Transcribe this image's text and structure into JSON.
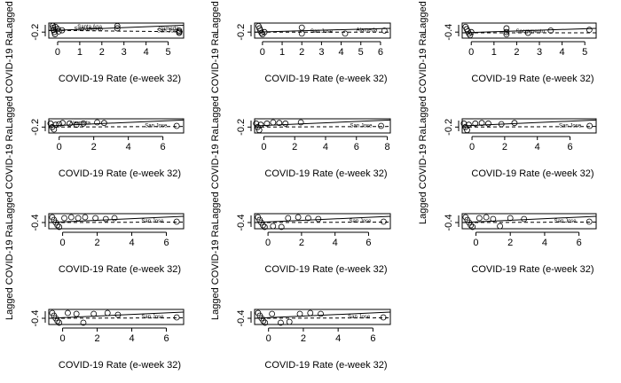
{
  "figure": {
    "xlabel_text": "COVID-19 Rate (e-week 32)",
    "ylabel_text": "Lagged COVID-19 Ra"
  },
  "chart_data": [
    {
      "type": "scatter",
      "panel": 1,
      "xlabel": "COVID-19 Rate (e-week 32)",
      "ylabel": "Lagged COVID-19 Ra",
      "xlim": [
        -0.4,
        5.7
      ],
      "ylim": [
        -0.24,
        -0.14
      ],
      "xticks": [
        0,
        1,
        2,
        3,
        4,
        5
      ],
      "yticks": [
        -0.2
      ],
      "fit_solid": {
        "x": [
          -0.4,
          5.7
        ],
        "y": [
          -0.19,
          -0.155
        ]
      },
      "fit_dashed": {
        "x": [
          -0.4,
          5.7
        ],
        "y": [
          -0.188,
          -0.198
        ]
      },
      "points": [
        {
          "x": -0.22,
          "y": -0.158
        },
        {
          "x": -0.2,
          "y": -0.172
        },
        {
          "x": -0.18,
          "y": -0.186
        },
        {
          "x": -0.15,
          "y": -0.2
        },
        {
          "x": -0.12,
          "y": -0.214
        },
        {
          "x": -0.1,
          "y": -0.165
        },
        {
          "x": 0.0,
          "y": -0.18
        },
        {
          "x": 0.05,
          "y": -0.195
        },
        {
          "x": 0.2,
          "y": -0.188
        },
        {
          "x": 2.7,
          "y": -0.16
        },
        {
          "x": 2.7,
          "y": -0.175
        },
        {
          "x": 5.5,
          "y": -0.19
        },
        {
          "x": 5.5,
          "y": -0.198
        },
        {
          "x": 5.5,
          "y": -0.205
        }
      ],
      "labeled_points": [
        {
          "label": "Santa Ana",
          "x": 1.45,
          "y": -0.16
        },
        {
          "label": "Sacramento",
          "x": 1.4,
          "y": -0.19
        },
        {
          "label": "Alameda",
          "x": 5.0,
          "y": -0.188
        },
        {
          "label": "San Jose",
          "x": 5.0,
          "y": -0.202
        }
      ]
    },
    {
      "type": "scatter",
      "panel": 2,
      "xlabel": "COVID-19 Rate (e-week 32)",
      "ylabel": "Lagged COVID-19 Ra",
      "xlim": [
        -0.4,
        6.5
      ],
      "ylim": [
        -0.24,
        -0.14
      ],
      "xticks": [
        0,
        1,
        2,
        3,
        4,
        5,
        6
      ],
      "yticks": [
        -0.2
      ],
      "fit_solid": {
        "x": [
          -0.4,
          6.5
        ],
        "y": [
          -0.2,
          -0.175
        ]
      },
      "fit_dashed": {
        "x": [
          -0.4,
          6.5
        ],
        "y": [
          -0.2,
          -0.2
        ]
      },
      "points": [
        {
          "x": -0.2,
          "y": -0.16
        },
        {
          "x": -0.15,
          "y": -0.175
        },
        {
          "x": -0.1,
          "y": -0.19
        },
        {
          "x": -0.05,
          "y": -0.205
        },
        {
          "x": 0.0,
          "y": -0.215
        },
        {
          "x": 0.1,
          "y": -0.2
        },
        {
          "x": 2.0,
          "y": -0.17
        },
        {
          "x": 2.0,
          "y": -0.21
        },
        {
          "x": 4.2,
          "y": -0.21
        },
        {
          "x": 6.2,
          "y": -0.19
        }
      ],
      "labeled_points": [
        {
          "label": "San Jose",
          "x": 3.0,
          "y": -0.205
        },
        {
          "label": "Alameda",
          "x": 5.3,
          "y": -0.195
        }
      ]
    },
    {
      "type": "scatter",
      "panel": 3,
      "xlabel": "COVID-19 Rate (e-week 32)",
      "ylabel": "Lagged COVID-19 Ra",
      "xlim": [
        -0.4,
        5.5
      ],
      "ylim": [
        -0.48,
        -0.28
      ],
      "xticks": [
        0,
        1,
        2,
        3,
        4,
        5
      ],
      "yticks": [
        -0.4
      ],
      "fit_solid": {
        "x": [
          -0.4,
          5.5
        ],
        "y": [
          -0.41,
          -0.35
        ]
      },
      "fit_dashed": {
        "x": [
          -0.4,
          5.5
        ],
        "y": [
          -0.41,
          -0.41
        ]
      },
      "points": [
        {
          "x": -0.25,
          "y": -0.33
        },
        {
          "x": -0.2,
          "y": -0.36
        },
        {
          "x": -0.15,
          "y": -0.39
        },
        {
          "x": -0.1,
          "y": -0.42
        },
        {
          "x": -0.05,
          "y": -0.44
        },
        {
          "x": 0.0,
          "y": -0.4
        },
        {
          "x": 1.55,
          "y": -0.35
        },
        {
          "x": 1.55,
          "y": -0.4
        },
        {
          "x": 1.55,
          "y": -0.43
        },
        {
          "x": 2.5,
          "y": -0.41
        },
        {
          "x": 3.5,
          "y": -0.38
        },
        {
          "x": 5.2,
          "y": -0.37
        }
      ],
      "labeled_points": [
        {
          "label": "Sacramento",
          "x": 2.6,
          "y": -0.41
        }
      ]
    },
    {
      "type": "scatter",
      "panel": 4,
      "xlabel": "COVID-19 Rate (e-week 32)",
      "ylabel": "Lagged COVID-19 Ra",
      "xlim": [
        -0.6,
        7.2
      ],
      "ylim": [
        -0.25,
        -0.13
      ],
      "xticks": [
        0,
        2,
        4,
        6
      ],
      "yticks": [
        -0.2
      ],
      "fit_solid": {
        "x": [
          -0.6,
          7.2
        ],
        "y": [
          -0.19,
          -0.14
        ]
      },
      "fit_dashed": {
        "x": [
          -0.6,
          7.2
        ],
        "y": [
          -0.2,
          -0.195
        ]
      },
      "points": [
        {
          "x": -0.5,
          "y": -0.17
        },
        {
          "x": -0.4,
          "y": -0.2
        },
        {
          "x": -0.3,
          "y": -0.22
        },
        {
          "x": -0.2,
          "y": -0.18
        },
        {
          "x": 0.0,
          "y": -0.175
        },
        {
          "x": 0.2,
          "y": -0.165
        },
        {
          "x": 0.6,
          "y": -0.17
        },
        {
          "x": 1.0,
          "y": -0.18
        },
        {
          "x": 1.4,
          "y": -0.17
        },
        {
          "x": 2.2,
          "y": -0.16
        },
        {
          "x": 2.6,
          "y": -0.165
        },
        {
          "x": 6.8,
          "y": -0.19
        }
      ],
      "labeled_points": [
        {
          "label": "Alameda",
          "x": 1.2,
          "y": -0.178
        },
        {
          "label": "San Jose",
          "x": 5.6,
          "y": -0.2
        }
      ]
    },
    {
      "type": "scatter",
      "panel": 5,
      "xlabel": "COVID-19 Rate (e-week 32)",
      "ylabel": "Lagged COVID-19 Ra",
      "xlim": [
        -0.6,
        8.2
      ],
      "ylim": [
        -0.25,
        -0.13
      ],
      "xticks": [
        0,
        2,
        4,
        6,
        8
      ],
      "yticks": [
        -0.2
      ],
      "fit_solid": {
        "x": [
          -0.6,
          8.2
        ],
        "y": [
          -0.19,
          -0.14
        ]
      },
      "fit_dashed": {
        "x": [
          -0.6,
          8.2
        ],
        "y": [
          -0.2,
          -0.195
        ]
      },
      "points": [
        {
          "x": -0.5,
          "y": -0.17
        },
        {
          "x": -0.4,
          "y": -0.2
        },
        {
          "x": -0.3,
          "y": -0.225
        },
        {
          "x": -0.2,
          "y": -0.18
        },
        {
          "x": 0.2,
          "y": -0.17
        },
        {
          "x": 0.6,
          "y": -0.16
        },
        {
          "x": 1.0,
          "y": -0.165
        },
        {
          "x": 1.4,
          "y": -0.17
        },
        {
          "x": 2.4,
          "y": -0.16
        },
        {
          "x": 7.6,
          "y": -0.19
        }
      ],
      "labeled_points": [
        {
          "label": "San Jose",
          "x": 6.3,
          "y": -0.2
        }
      ]
    },
    {
      "type": "scatter",
      "panel": 6,
      "xlabel": "COVID-19 Rate (e-week 32)",
      "ylabel": "Lagged COVID-19 Ra",
      "xlim": [
        -0.6,
        7.6
      ],
      "ylim": [
        -0.25,
        -0.13
      ],
      "xticks": [
        0,
        2,
        4,
        6
      ],
      "yticks": [
        -0.2
      ],
      "fit_solid": {
        "x": [
          -0.6,
          7.6
        ],
        "y": [
          -0.19,
          -0.14
        ]
      },
      "fit_dashed": {
        "x": [
          -0.6,
          7.6
        ],
        "y": [
          -0.2,
          -0.195
        ]
      },
      "points": [
        {
          "x": -0.5,
          "y": -0.17
        },
        {
          "x": -0.4,
          "y": -0.2
        },
        {
          "x": -0.3,
          "y": -0.225
        },
        {
          "x": -0.2,
          "y": -0.18
        },
        {
          "x": 0.2,
          "y": -0.17
        },
        {
          "x": 0.6,
          "y": -0.165
        },
        {
          "x": 1.0,
          "y": -0.17
        },
        {
          "x": 1.8,
          "y": -0.175
        },
        {
          "x": 2.6,
          "y": -0.165
        },
        {
          "x": 7.2,
          "y": -0.19
        }
      ],
      "labeled_points": [
        {
          "label": "San Jose",
          "x": 6.0,
          "y": -0.2
        }
      ]
    },
    {
      "type": "scatter",
      "panel": 7,
      "xlabel": "COVID-19 Rate (e-week 32)",
      "ylabel": "Lagged COVID-19 Ra",
      "xlim": [
        -0.8,
        7.0
      ],
      "ylim": [
        -0.47,
        -0.3
      ],
      "xticks": [
        0,
        2,
        4,
        6
      ],
      "yticks": [
        -0.4
      ],
      "fit_solid": {
        "x": [
          -0.8,
          7.0
        ],
        "y": [
          -0.4,
          -0.33
        ]
      },
      "fit_dashed": {
        "x": [
          -0.8,
          7.0
        ],
        "y": [
          -0.4,
          -0.395
        ]
      },
      "points": [
        {
          "x": -0.6,
          "y": -0.34
        },
        {
          "x": -0.5,
          "y": -0.37
        },
        {
          "x": -0.4,
          "y": -0.4
        },
        {
          "x": -0.3,
          "y": -0.43
        },
        {
          "x": -0.2,
          "y": -0.45
        },
        {
          "x": 0.1,
          "y": -0.35
        },
        {
          "x": 0.5,
          "y": -0.34
        },
        {
          "x": 0.9,
          "y": -0.35
        },
        {
          "x": 1.3,
          "y": -0.34
        },
        {
          "x": 1.9,
          "y": -0.35
        },
        {
          "x": 2.5,
          "y": -0.36
        },
        {
          "x": 3.0,
          "y": -0.35
        },
        {
          "x": 6.6,
          "y": -0.39
        }
      ],
      "labeled_points": [
        {
          "label": "San Jose",
          "x": 5.2,
          "y": -0.4
        }
      ]
    },
    {
      "type": "scatter",
      "panel": 8,
      "xlabel": "COVID-19 Rate (e-week 32)",
      "ylabel": "Lagged COVID-19 Ra",
      "xlim": [
        -0.8,
        7.3
      ],
      "ylim": [
        -0.47,
        -0.3
      ],
      "xticks": [
        0,
        2,
        4,
        6
      ],
      "yticks": [
        -0.4
      ],
      "fit_solid": {
        "x": [
          -0.8,
          7.3
        ],
        "y": [
          -0.4,
          -0.33
        ]
      },
      "fit_dashed": {
        "x": [
          -0.8,
          7.3
        ],
        "y": [
          -0.4,
          -0.395
        ]
      },
      "points": [
        {
          "x": -0.6,
          "y": -0.34
        },
        {
          "x": -0.5,
          "y": -0.37
        },
        {
          "x": -0.4,
          "y": -0.4
        },
        {
          "x": -0.3,
          "y": -0.43
        },
        {
          "x": -0.2,
          "y": -0.45
        },
        {
          "x": 0.3,
          "y": -0.44
        },
        {
          "x": 0.8,
          "y": -0.45
        },
        {
          "x": 1.2,
          "y": -0.35
        },
        {
          "x": 1.8,
          "y": -0.34
        },
        {
          "x": 2.4,
          "y": -0.35
        },
        {
          "x": 3.0,
          "y": -0.36
        },
        {
          "x": 6.9,
          "y": -0.39
        }
      ],
      "labeled_points": [
        {
          "label": "San Jose",
          "x": 5.5,
          "y": -0.4
        }
      ]
    },
    {
      "type": "scatter",
      "panel": 9,
      "xlabel": "COVID-19 Rate (e-week 32)",
      "ylabel": "Lagged COVID-19 Ra",
      "xlim": [
        -0.8,
        7.0
      ],
      "ylim": [
        -0.47,
        -0.3
      ],
      "xticks": [
        0,
        2,
        4,
        6
      ],
      "yticks": [
        -0.4
      ],
      "fit_solid": {
        "x": [
          -0.8,
          7.0
        ],
        "y": [
          -0.4,
          -0.33
        ]
      },
      "fit_dashed": {
        "x": [
          -0.8,
          7.0
        ],
        "y": [
          -0.4,
          -0.395
        ]
      },
      "points": [
        {
          "x": -0.6,
          "y": -0.34
        },
        {
          "x": -0.5,
          "y": -0.37
        },
        {
          "x": -0.4,
          "y": -0.4
        },
        {
          "x": -0.3,
          "y": -0.43
        },
        {
          "x": -0.2,
          "y": -0.45
        },
        {
          "x": 0.2,
          "y": -0.35
        },
        {
          "x": 0.6,
          "y": -0.34
        },
        {
          "x": 1.0,
          "y": -0.36
        },
        {
          "x": 1.4,
          "y": -0.44
        },
        {
          "x": 2.0,
          "y": -0.35
        },
        {
          "x": 2.8,
          "y": -0.36
        },
        {
          "x": 6.6,
          "y": -0.39
        }
      ],
      "labeled_points": [
        {
          "label": "San Jose",
          "x": 5.2,
          "y": -0.4
        }
      ]
    },
    {
      "type": "scatter",
      "panel": 10,
      "xlabel": "COVID-19 Rate (e-week 32)",
      "ylabel": "Lagged COVID-19 Ra",
      "xlim": [
        -0.8,
        7.0
      ],
      "ylim": [
        -0.47,
        -0.3
      ],
      "xticks": [
        0,
        2,
        4,
        6
      ],
      "yticks": [
        -0.4
      ],
      "fit_solid": {
        "x": [
          -0.8,
          7.0
        ],
        "y": [
          -0.4,
          -0.33
        ]
      },
      "fit_dashed": {
        "x": [
          -0.8,
          7.0
        ],
        "y": [
          -0.4,
          -0.395
        ]
      },
      "points": [
        {
          "x": -0.6,
          "y": -0.34
        },
        {
          "x": -0.5,
          "y": -0.37
        },
        {
          "x": -0.4,
          "y": -0.4
        },
        {
          "x": -0.3,
          "y": -0.43
        },
        {
          "x": -0.2,
          "y": -0.45
        },
        {
          "x": 0.3,
          "y": -0.34
        },
        {
          "x": 0.8,
          "y": -0.35
        },
        {
          "x": 1.2,
          "y": -0.45
        },
        {
          "x": 1.8,
          "y": -0.35
        },
        {
          "x": 2.6,
          "y": -0.34
        },
        {
          "x": 3.2,
          "y": -0.36
        },
        {
          "x": 6.6,
          "y": -0.39
        }
      ],
      "labeled_points": [
        {
          "label": "San Jose",
          "x": 5.2,
          "y": -0.4
        }
      ]
    },
    {
      "type": "scatter",
      "panel": 11,
      "xlabel": "COVID-19 Rate (e-week 32)",
      "ylabel": "Lagged COVID-19 Ra",
      "xlim": [
        -0.8,
        7.0
      ],
      "ylim": [
        -0.47,
        -0.3
      ],
      "xticks": [
        0,
        2,
        4,
        6
      ],
      "yticks": [
        -0.4
      ],
      "fit_solid": {
        "x": [
          -0.8,
          7.0
        ],
        "y": [
          -0.4,
          -0.33
        ]
      },
      "fit_dashed": {
        "x": [
          -0.8,
          7.0
        ],
        "y": [
          -0.4,
          -0.395
        ]
      },
      "points": [
        {
          "x": -0.6,
          "y": -0.34
        },
        {
          "x": -0.5,
          "y": -0.37
        },
        {
          "x": -0.4,
          "y": -0.4
        },
        {
          "x": -0.3,
          "y": -0.43
        },
        {
          "x": -0.2,
          "y": -0.45
        },
        {
          "x": 0.2,
          "y": -0.35
        },
        {
          "x": 0.7,
          "y": -0.45
        },
        {
          "x": 1.2,
          "y": -0.44
        },
        {
          "x": 1.8,
          "y": -0.35
        },
        {
          "x": 2.4,
          "y": -0.34
        },
        {
          "x": 3.0,
          "y": -0.35
        },
        {
          "x": 6.6,
          "y": -0.39
        }
      ],
      "labeled_points": [
        {
          "label": "San Jose",
          "x": 5.2,
          "y": -0.4
        }
      ]
    }
  ]
}
